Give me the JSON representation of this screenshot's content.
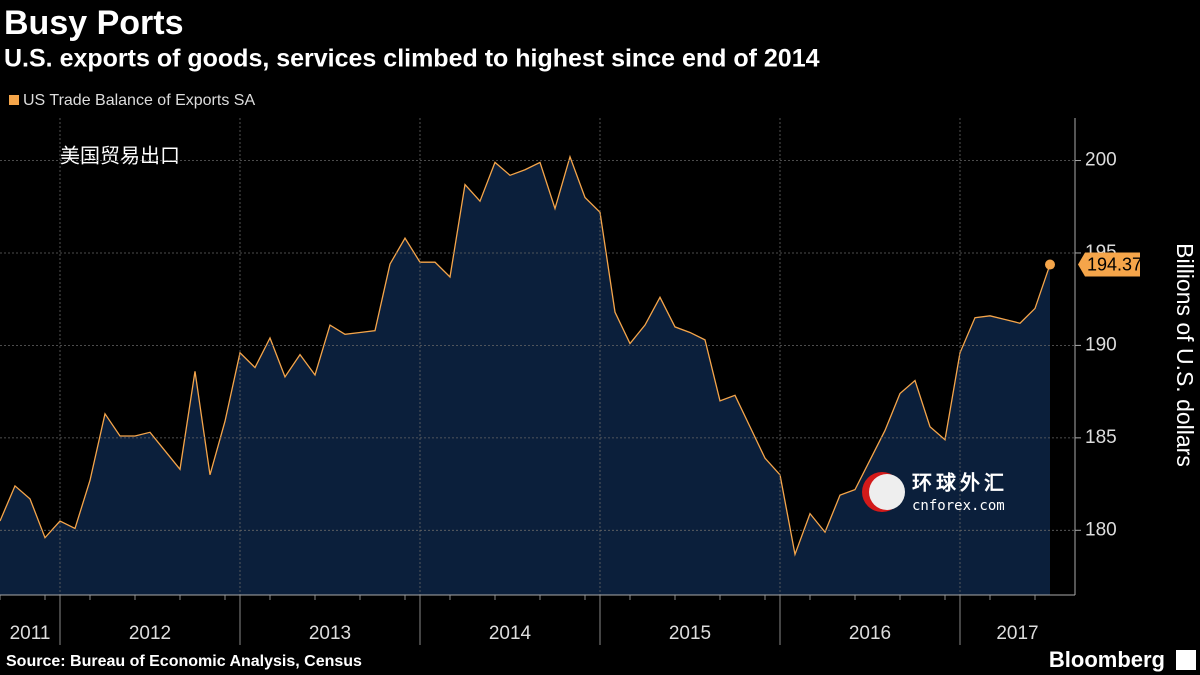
{
  "chart_data": {
    "type": "area",
    "title": "Busy Ports",
    "subtitle": "U.S. exports of goods, services climbed to highest since end of 2014",
    "y_label": "Billions of U.S. dollars",
    "annotation": "美国贸易出口",
    "watermark": [
      "环球外汇",
      "cnforex.com"
    ],
    "source": "Source: Bureau of Economic Analysis, Census",
    "brand": "Bloomberg",
    "categories": [
      "2011",
      null,
      null,
      null,
      "2012",
      null,
      null,
      null,
      null,
      null,
      null,
      null,
      null,
      null,
      null,
      null,
      "2013",
      null,
      null,
      null,
      null,
      null,
      null,
      null,
      null,
      null,
      null,
      null,
      "2014",
      null,
      null,
      null,
      null,
      null,
      null,
      null,
      null,
      null,
      null,
      null,
      "2015",
      null,
      null,
      null,
      null,
      null,
      null,
      null,
      null,
      null,
      null,
      null,
      "2016",
      null,
      null,
      null,
      null,
      null,
      null,
      null,
      null,
      null,
      null,
      null,
      "2017",
      null,
      null,
      null,
      null,
      null,
      null
    ],
    "series": [
      {
        "name": "US Trade Balance of Exports SA",
        "color": "#f5a54a",
        "fill": "#0b1f3b",
        "values": [
          180.5,
          182.4,
          181.7,
          179.6,
          180.5,
          180.1,
          182.7,
          186.3,
          185.1,
          185.1,
          185.3,
          184.3,
          183.3,
          188.6,
          183.0,
          185.9,
          189.6,
          188.8,
          190.4,
          188.3,
          189.5,
          188.4,
          191.1,
          190.6,
          190.7,
          190.8,
          194.4,
          195.8,
          194.5,
          194.5,
          193.7,
          198.7,
          197.8,
          199.9,
          199.2,
          199.5,
          199.9,
          197.4,
          200.2,
          198.0,
          197.2,
          191.8,
          190.1,
          191.1,
          192.6,
          191.0,
          190.7,
          190.3,
          187.0,
          187.3,
          185.6,
          183.9,
          183.0,
          178.7,
          180.9,
          179.9,
          181.9,
          182.2,
          183.8,
          185.4,
          187.4,
          188.1,
          185.6,
          184.9,
          189.6,
          191.5,
          191.6,
          191.4,
          191.2,
          192.0,
          194.374
        ]
      }
    ],
    "ylim": [
      176.5,
      202.3
    ],
    "yticks": [
      180,
      185,
      190,
      195,
      200
    ],
    "grid": true
  }
}
